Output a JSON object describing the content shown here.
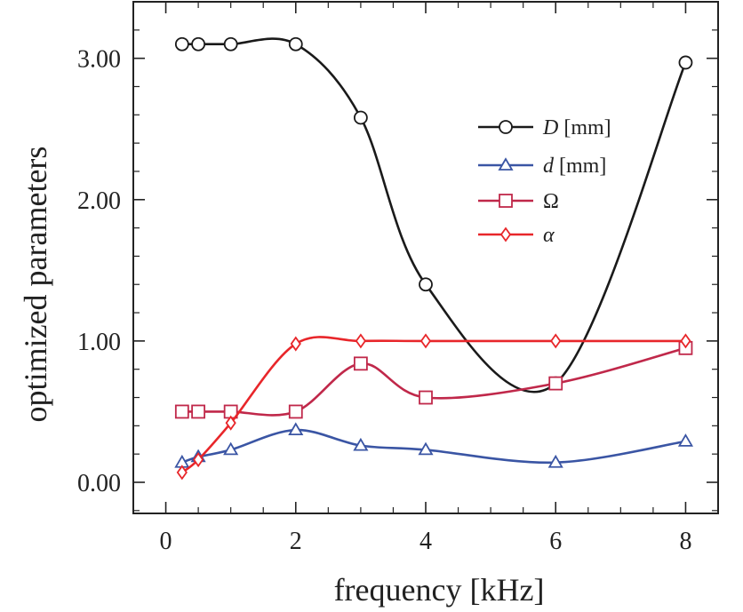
{
  "chart_data": {
    "type": "line",
    "title": "",
    "xlabel": "frequency [kHz]",
    "ylabel": "optimized parameters",
    "xlim": [
      -0.5,
      8.5
    ],
    "ylim": [
      -0.22,
      3.4
    ],
    "xticks": [
      0,
      2,
      4,
      6,
      8
    ],
    "xtick_labels": [
      "0",
      "2",
      "4",
      "6",
      "8"
    ],
    "yticks": [
      0,
      1,
      2,
      3
    ],
    "ytick_labels": [
      "0.00",
      "1.00",
      "2.00",
      "3.00"
    ],
    "grid": false,
    "legend_position": "top-right",
    "series": [
      {
        "name": "D",
        "unit": "[mm]",
        "italic": true,
        "marker": "circle",
        "color": "#1a1a1a",
        "x": [
          0.25,
          0.5,
          1,
          2,
          3,
          4,
          6,
          8
        ],
        "y": [
          3.1,
          3.1,
          3.1,
          3.1,
          2.58,
          1.4,
          0.7,
          2.97
        ]
      },
      {
        "name": "d",
        "unit": "[mm]",
        "italic": true,
        "marker": "triangle",
        "color": "#3a55a4",
        "x": [
          0.25,
          0.5,
          1,
          2,
          3,
          4,
          6,
          8
        ],
        "y": [
          0.14,
          0.18,
          0.23,
          0.37,
          0.26,
          0.23,
          0.14,
          0.29
        ]
      },
      {
        "name": "Ω",
        "unit": "",
        "italic": false,
        "marker": "square",
        "color": "#c0284a",
        "x": [
          0.25,
          0.5,
          1,
          2,
          3,
          4,
          6,
          8
        ],
        "y": [
          0.5,
          0.5,
          0.5,
          0.5,
          0.84,
          0.6,
          0.7,
          0.95
        ]
      },
      {
        "name": "α",
        "unit": "",
        "italic": true,
        "marker": "diamond",
        "color": "#e8262a",
        "x": [
          0.25,
          0.5,
          1,
          2,
          3,
          4,
          6,
          8
        ],
        "y": [
          0.07,
          0.16,
          0.42,
          0.98,
          1.0,
          1.0,
          1.0,
          1.0
        ]
      }
    ]
  }
}
